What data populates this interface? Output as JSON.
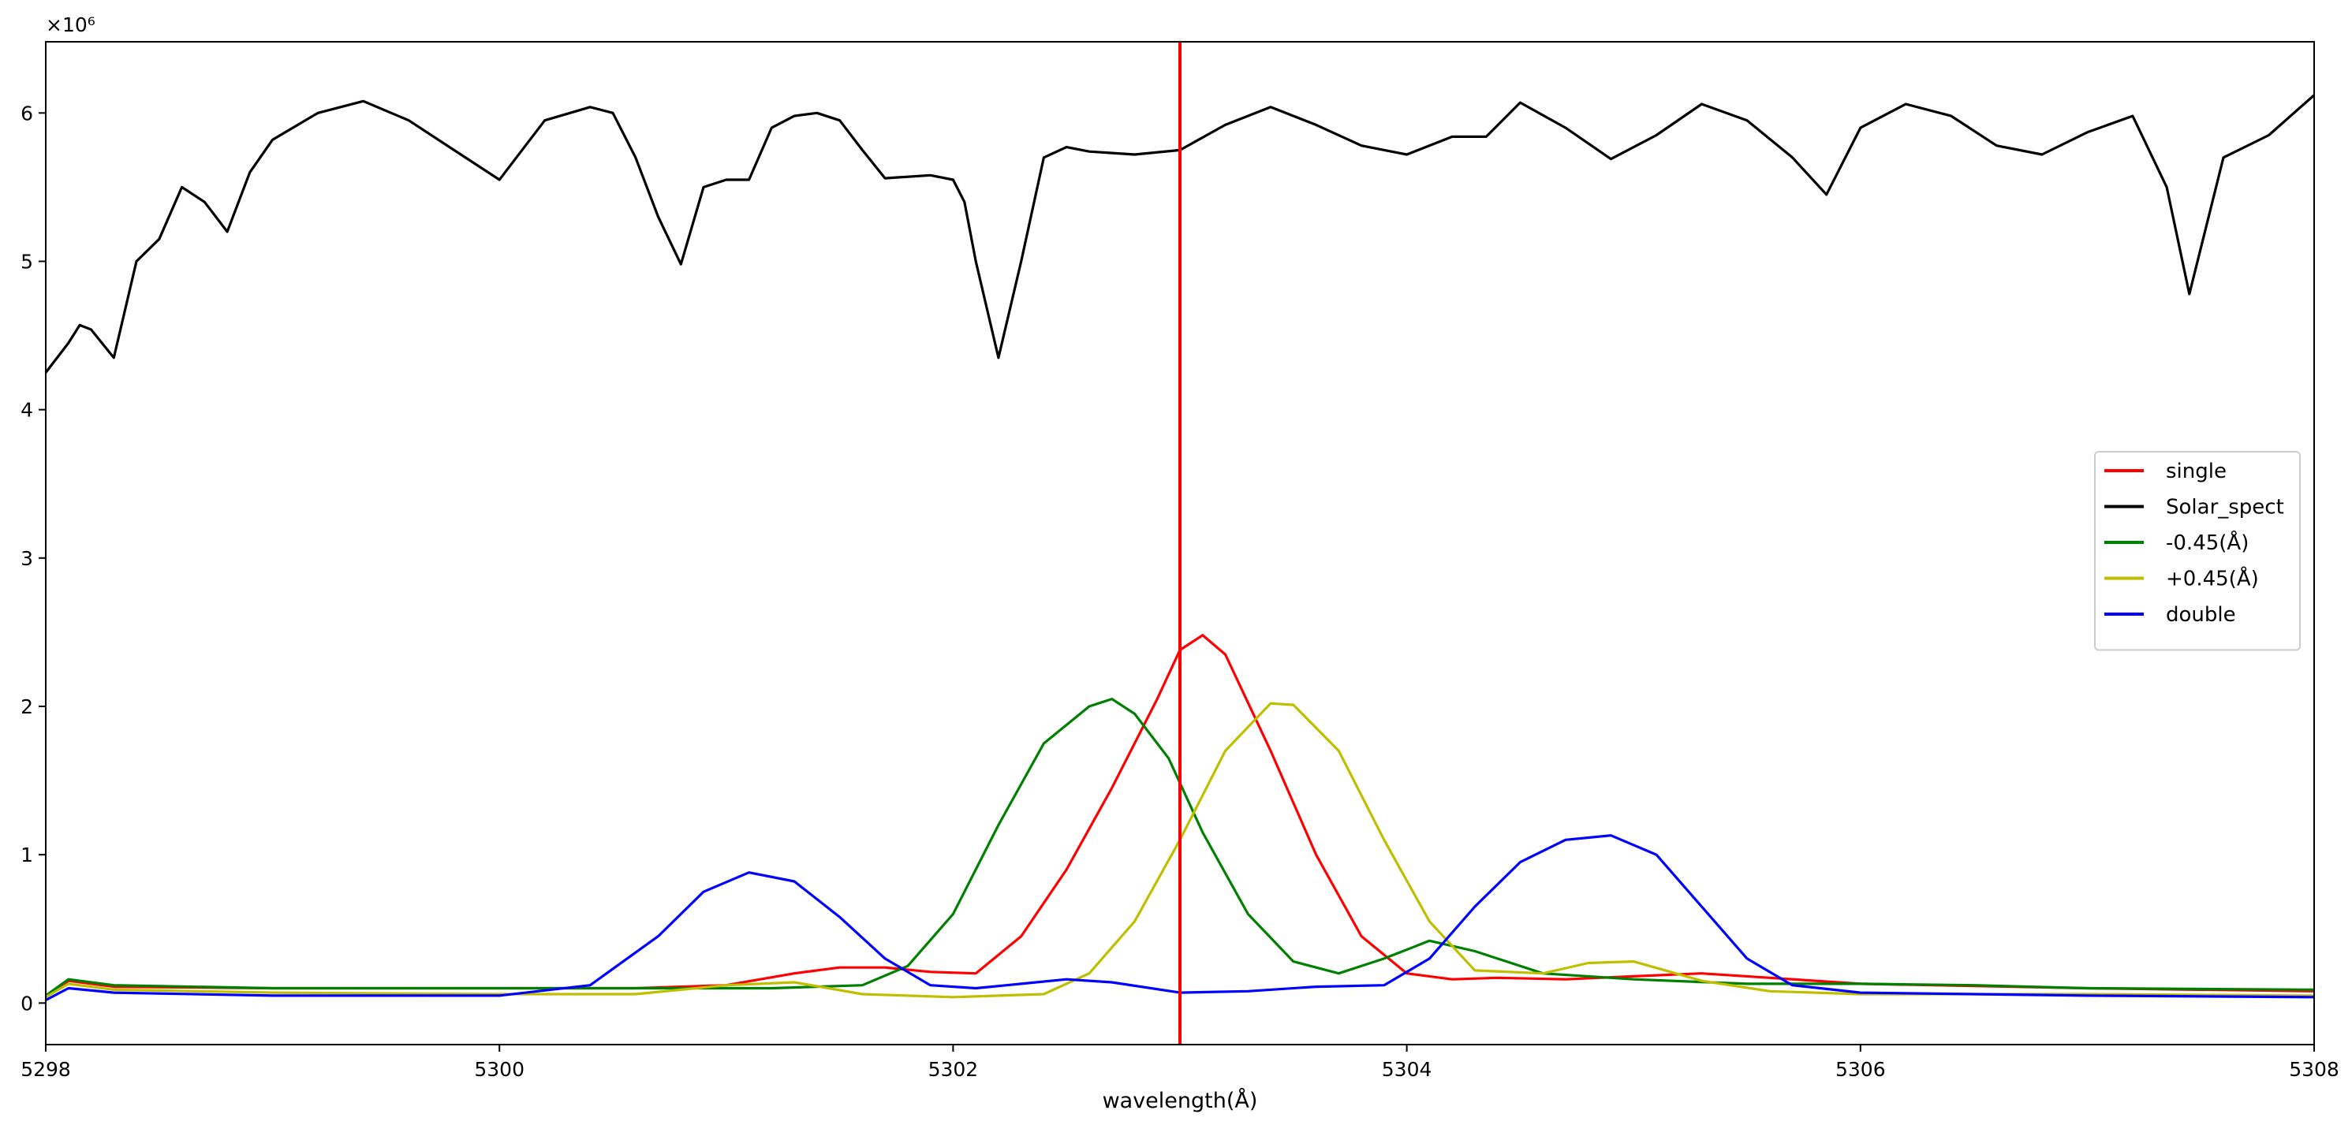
{
  "chart_data": {
    "type": "line",
    "title": "",
    "xlabel": "wavelength(Å)",
    "ylabel": "",
    "y_scale_label": "×10⁶",
    "xlim": [
      5298,
      5308
    ],
    "ylim": [
      -0.28,
      6.48
    ],
    "x_ticks": [
      "5298",
      "5300",
      "5302",
      "5304",
      "5306",
      "5308"
    ],
    "y_ticks": [
      "0",
      "1",
      "2",
      "3",
      "4",
      "5",
      "6"
    ],
    "grid": false,
    "legend_position": "center-right",
    "vline": {
      "x": 5303.0,
      "color": "#ff0000"
    },
    "series": [
      {
        "name": "single",
        "color": "#ff0000",
        "x": [
          5298.0,
          5298.1,
          5298.3,
          5299.0,
          5300.0,
          5300.6,
          5301.0,
          5301.3,
          5301.5,
          5301.7,
          5301.9,
          5302.1,
          5302.3,
          5302.5,
          5302.7,
          5302.9,
          5303.0,
          5303.1,
          5303.2,
          5303.4,
          5303.6,
          5303.8,
          5304.0,
          5304.2,
          5304.4,
          5304.7,
          5305.0,
          5305.3,
          5305.6,
          5306.0,
          5307.0,
          5308.0
        ],
        "y": [
          0.04,
          0.15,
          0.11,
          0.1,
          0.1,
          0.1,
          0.12,
          0.2,
          0.24,
          0.24,
          0.21,
          0.2,
          0.45,
          0.9,
          1.45,
          2.05,
          2.38,
          2.48,
          2.35,
          1.7,
          1.0,
          0.45,
          0.2,
          0.16,
          0.17,
          0.16,
          0.18,
          0.2,
          0.17,
          0.13,
          0.1,
          0.08
        ]
      },
      {
        "name": "Solar_spect",
        "color": "#000000",
        "x": [
          5298.0,
          5298.1,
          5298.15,
          5298.2,
          5298.3,
          5298.4,
          5298.5,
          5298.6,
          5298.7,
          5298.8,
          5298.9,
          5299.0,
          5299.2,
          5299.4,
          5299.6,
          5299.8,
          5300.0,
          5300.2,
          5300.4,
          5300.5,
          5300.6,
          5300.7,
          5300.8,
          5300.9,
          5301.0,
          5301.1,
          5301.2,
          5301.3,
          5301.4,
          5301.5,
          5301.6,
          5301.7,
          5301.9,
          5302.0,
          5302.05,
          5302.1,
          5302.2,
          5302.3,
          5302.4,
          5302.5,
          5302.6,
          5302.8,
          5303.0,
          5303.2,
          5303.4,
          5303.6,
          5303.8,
          5304.0,
          5304.2,
          5304.35,
          5304.5,
          5304.7,
          5304.9,
          5305.1,
          5305.3,
          5305.5,
          5305.7,
          5305.85,
          5306.0,
          5306.2,
          5306.4,
          5306.6,
          5306.8,
          5307.0,
          5307.2,
          5307.35,
          5307.45,
          5307.6,
          5307.8,
          5308.0
        ],
        "y": [
          4.25,
          4.45,
          4.57,
          4.54,
          4.35,
          5.0,
          5.15,
          5.5,
          5.4,
          5.2,
          5.6,
          5.82,
          6.0,
          6.08,
          5.95,
          5.75,
          5.55,
          5.95,
          6.04,
          6.0,
          5.7,
          5.3,
          4.98,
          5.5,
          5.55,
          5.55,
          5.9,
          5.98,
          6.0,
          5.95,
          5.75,
          5.56,
          5.58,
          5.55,
          5.4,
          5.0,
          4.35,
          5.0,
          5.7,
          5.77,
          5.74,
          5.72,
          5.75,
          5.92,
          6.04,
          5.92,
          5.78,
          5.72,
          5.84,
          5.84,
          6.07,
          5.9,
          5.69,
          5.85,
          6.06,
          5.95,
          5.7,
          5.45,
          5.9,
          6.06,
          5.98,
          5.78,
          5.72,
          5.87,
          5.98,
          5.5,
          4.78,
          5.7,
          5.85,
          6.12
        ]
      },
      {
        "name": "-0.45(Å)",
        "color": "#008000",
        "x": [
          5298.0,
          5298.1,
          5298.3,
          5299.0,
          5300.0,
          5300.8,
          5301.2,
          5301.6,
          5301.8,
          5302.0,
          5302.2,
          5302.4,
          5302.6,
          5302.7,
          5302.8,
          5302.95,
          5303.1,
          5303.3,
          5303.5,
          5303.7,
          5303.9,
          5304.1,
          5304.3,
          5304.6,
          5305.0,
          5305.5,
          5306.0,
          5306.5,
          5307.0,
          5308.0
        ],
        "y": [
          0.05,
          0.16,
          0.12,
          0.1,
          0.1,
          0.1,
          0.1,
          0.12,
          0.25,
          0.6,
          1.2,
          1.75,
          2.0,
          2.05,
          1.95,
          1.65,
          1.15,
          0.6,
          0.28,
          0.2,
          0.3,
          0.42,
          0.35,
          0.2,
          0.16,
          0.13,
          0.13,
          0.12,
          0.1,
          0.09
        ]
      },
      {
        "name": "+0.45(Å)",
        "color": "#bfbf00",
        "x": [
          5298.0,
          5298.1,
          5298.3,
          5299.0,
          5300.0,
          5300.6,
          5301.0,
          5301.3,
          5301.6,
          5302.0,
          5302.4,
          5302.6,
          5302.8,
          5303.0,
          5303.2,
          5303.4,
          5303.5,
          5303.7,
          5303.9,
          5304.1,
          5304.3,
          5304.6,
          5304.8,
          5305.0,
          5305.3,
          5305.6,
          5306.0,
          5307.0,
          5308.0
        ],
        "y": [
          0.04,
          0.13,
          0.09,
          0.07,
          0.06,
          0.06,
          0.12,
          0.14,
          0.06,
          0.04,
          0.06,
          0.2,
          0.55,
          1.1,
          1.7,
          2.02,
          2.01,
          1.7,
          1.1,
          0.55,
          0.22,
          0.2,
          0.27,
          0.28,
          0.15,
          0.08,
          0.06,
          0.06,
          0.05
        ]
      },
      {
        "name": "double",
        "color": "#0000ff",
        "x": [
          5298.0,
          5298.1,
          5298.3,
          5299.0,
          5300.0,
          5300.4,
          5300.7,
          5300.9,
          5301.1,
          5301.3,
          5301.5,
          5301.7,
          5301.9,
          5302.1,
          5302.3,
          5302.5,
          5302.7,
          5303.0,
          5303.3,
          5303.6,
          5303.9,
          5304.1,
          5304.3,
          5304.5,
          5304.7,
          5304.9,
          5305.1,
          5305.3,
          5305.5,
          5305.7,
          5306.0,
          5307.0,
          5308.0
        ],
        "y": [
          0.02,
          0.1,
          0.07,
          0.05,
          0.05,
          0.12,
          0.45,
          0.75,
          0.88,
          0.82,
          0.58,
          0.3,
          0.12,
          0.1,
          0.13,
          0.16,
          0.14,
          0.07,
          0.08,
          0.11,
          0.12,
          0.3,
          0.65,
          0.95,
          1.1,
          1.13,
          1.0,
          0.65,
          0.3,
          0.12,
          0.07,
          0.05,
          0.04
        ]
      }
    ]
  }
}
